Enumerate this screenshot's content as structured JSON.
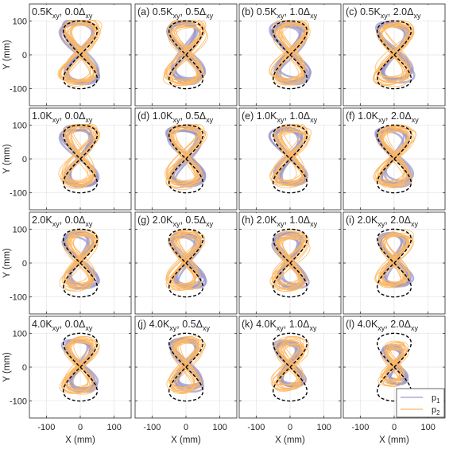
{
  "chart_data": {
    "type": "line",
    "layout": {
      "rows": 4,
      "cols": 4
    },
    "xlabel": "X (mm)",
    "ylabel": "Y (mm)",
    "xlim": [
      -150,
      150
    ],
    "ylim": [
      -150,
      150
    ],
    "x_ticks": [
      -100,
      0,
      100
    ],
    "y_ticks": [
      -100,
      0,
      100
    ],
    "grid": true,
    "legend": {
      "location": "bottom-right",
      "entries": [
        {
          "label_base": "p",
          "label_sub": "1",
          "color": "#9E9ACB"
        },
        {
          "label_base": "p",
          "label_sub": "2",
          "color": "#FDB863"
        }
      ]
    },
    "reference_path": {
      "shape": "figure-eight",
      "amplitude_x": 50,
      "amplitude_y": 100,
      "style": "dashed",
      "color": "#000000"
    },
    "colors": {
      "p1": "#9E9ACB",
      "p2": "#FDB863",
      "reference": "#000000"
    },
    "panels": [
      {
        "prefix": "",
        "k": "0.5K",
        "k_sub": "xy",
        "d": "0.0Δ",
        "d_sub": "xy",
        "p1_scale": 1.0,
        "p2_scale": 1.0
      },
      {
        "prefix": "(a) ",
        "k": "0.5K",
        "k_sub": "xy",
        "d": "0.5Δ",
        "d_sub": "xy",
        "p1_scale": 0.98,
        "p2_scale": 1.0
      },
      {
        "prefix": "(b) ",
        "k": "0.5K",
        "k_sub": "xy",
        "d": "1.0Δ",
        "d_sub": "xy",
        "p1_scale": 0.96,
        "p2_scale": 0.98
      },
      {
        "prefix": "(c) ",
        "k": "0.5K",
        "k_sub": "xy",
        "d": "2.0Δ",
        "d_sub": "xy",
        "p1_scale": 0.94,
        "p2_scale": 0.97
      },
      {
        "prefix": "",
        "k": "1.0K",
        "k_sub": "xy",
        "d": "0.0Δ",
        "d_sub": "xy",
        "p1_scale": 0.96,
        "p2_scale": 0.98
      },
      {
        "prefix": "(d) ",
        "k": "1.0K",
        "k_sub": "xy",
        "d": "0.5Δ",
        "d_sub": "xy",
        "p1_scale": 0.94,
        "p2_scale": 0.97
      },
      {
        "prefix": "(e) ",
        "k": "1.0K",
        "k_sub": "xy",
        "d": "1.0Δ",
        "d_sub": "xy",
        "p1_scale": 0.92,
        "p2_scale": 0.96
      },
      {
        "prefix": "(f) ",
        "k": "1.0K",
        "k_sub": "xy",
        "d": "2.0Δ",
        "d_sub": "xy",
        "p1_scale": 0.9,
        "p2_scale": 0.95
      },
      {
        "prefix": "",
        "k": "2.0K",
        "k_sub": "xy",
        "d": "0.0Δ",
        "d_sub": "xy",
        "p1_scale": 0.88,
        "p2_scale": 0.9
      },
      {
        "prefix": "(g) ",
        "k": "2.0K",
        "k_sub": "xy",
        "d": "0.5Δ",
        "d_sub": "xy",
        "p1_scale": 0.88,
        "p2_scale": 0.9
      },
      {
        "prefix": "(h) ",
        "k": "2.0K",
        "k_sub": "xy",
        "d": "1.0Δ",
        "d_sub": "xy",
        "p1_scale": 0.86,
        "p2_scale": 0.88
      },
      {
        "prefix": "(i) ",
        "k": "2.0K",
        "k_sub": "xy",
        "d": "2.0Δ",
        "d_sub": "xy",
        "p1_scale": 0.84,
        "p2_scale": 0.86
      },
      {
        "prefix": "",
        "k": "4.0K",
        "k_sub": "xy",
        "d": "0.0Δ",
        "d_sub": "xy",
        "p1_scale": 0.82,
        "p2_scale": 0.86
      },
      {
        "prefix": "(j) ",
        "k": "4.0K",
        "k_sub": "xy",
        "d": "0.5Δ",
        "d_sub": "xy",
        "p1_scale": 0.8,
        "p2_scale": 0.84
      },
      {
        "prefix": "(k) ",
        "k": "4.0K",
        "k_sub": "xy",
        "d": "1.0Δ",
        "d_sub": "xy",
        "p1_scale": 0.75,
        "p2_scale": 0.78
      },
      {
        "prefix": "(l) ",
        "k": "4.0K",
        "k_sub": "xy",
        "d": "2.0Δ",
        "d_sub": "xy",
        "p1_scale": 0.6,
        "p2_scale": 0.62
      }
    ]
  }
}
